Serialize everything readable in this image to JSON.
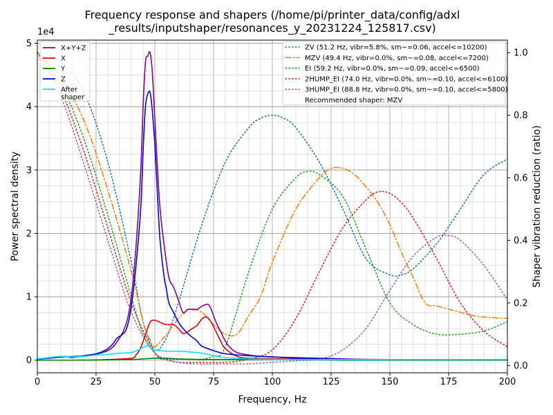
{
  "chart_data": {
    "type": "line",
    "title_lines": [
      "Frequency response and shapers (/home/pi/printer_data/config/adxl",
      "_results/inputshaper/resonances_y_20231224_125817.csv)"
    ],
    "xlabel": "Frequency, Hz",
    "ylabel": "Power spectral density",
    "y2label": "Shaper vibration reduction (ratio)",
    "y_offset_text": "1e4",
    "xlim": [
      0,
      200
    ],
    "ylim": [
      -0.2,
      5.05
    ],
    "y2lim": [
      -0.0235,
      1.04
    ],
    "x_ticks": [
      0,
      25,
      50,
      75,
      100,
      125,
      150,
      175,
      200
    ],
    "y_ticks": [
      0,
      1,
      2,
      3,
      4,
      5
    ],
    "y2_ticks": [
      0.0,
      0.2,
      0.4,
      0.6,
      0.8,
      1.0
    ],
    "x_tick_labels": [
      "0",
      "25",
      "50",
      "75",
      "100",
      "125",
      "150",
      "175",
      "200"
    ],
    "y_tick_labels": [
      "0",
      "1",
      "2",
      "3",
      "4",
      "5"
    ],
    "y2_tick_labels": [
      "0.0",
      "0.2",
      "0.4",
      "0.6",
      "0.8",
      "1.0"
    ],
    "grid": true,
    "legend_left_position": "upper-left",
    "legend_right_position": "upper-right",
    "psd_series": [
      {
        "name": "X+Y+Z",
        "color": "#800080",
        "x": [
          0,
          10,
          20,
          30,
          35,
          38,
          40,
          42,
          44,
          45,
          46,
          47,
          48,
          49,
          50,
          52,
          54,
          56,
          58,
          60,
          62,
          64,
          66,
          68,
          70,
          72,
          73,
          74,
          76,
          78,
          80,
          82,
          85,
          90,
          95,
          100,
          110,
          120,
          130,
          140,
          150,
          170,
          200
        ],
        "y": [
          0.02,
          0.05,
          0.07,
          0.15,
          0.35,
          0.6,
          1.0,
          1.8,
          3.0,
          4.0,
          4.7,
          4.8,
          4.85,
          4.5,
          3.8,
          2.5,
          1.8,
          1.3,
          1.15,
          0.95,
          0.75,
          0.8,
          0.8,
          0.8,
          0.85,
          0.88,
          0.87,
          0.8,
          0.6,
          0.45,
          0.3,
          0.2,
          0.12,
          0.08,
          0.06,
          0.05,
          0.04,
          0.03,
          0.02,
          0.01,
          0.01,
          0.01,
          0.01
        ]
      },
      {
        "name": "X",
        "color": "#e00000",
        "x": [
          0,
          20,
          30,
          40,
          42,
          44,
          46,
          48,
          50,
          52,
          54,
          56,
          58,
          60,
          62,
          64,
          66,
          68,
          70,
          72,
          74,
          76,
          78,
          80,
          85,
          90,
          100,
          120,
          150,
          200
        ],
        "y": [
          0,
          0,
          0.01,
          0.03,
          0.08,
          0.2,
          0.4,
          0.6,
          0.63,
          0.6,
          0.57,
          0.56,
          0.56,
          0.5,
          0.42,
          0.45,
          0.5,
          0.55,
          0.65,
          0.68,
          0.6,
          0.45,
          0.3,
          0.18,
          0.06,
          0.03,
          0.02,
          0.01,
          0.01,
          0
        ]
      },
      {
        "name": "Y",
        "color": "#008000",
        "x": [
          0,
          20,
          40,
          45,
          50,
          55,
          60,
          70,
          80,
          100,
          130,
          150,
          200
        ],
        "y": [
          0,
          0,
          0.01,
          0.02,
          0.03,
          0.03,
          0.02,
          0.01,
          0.01,
          0.01,
          0,
          0,
          0
        ]
      },
      {
        "name": "Z",
        "color": "#0000dd",
        "x": [
          0,
          5,
          10,
          12,
          15,
          20,
          25,
          28,
          30,
          32,
          34,
          36,
          38,
          40,
          42,
          44,
          45,
          46,
          47,
          48,
          49,
          50,
          51,
          52,
          53,
          54,
          55,
          56,
          58,
          60,
          62,
          64,
          66,
          68,
          70,
          75,
          80,
          90,
          100,
          110,
          120,
          150,
          200
        ],
        "y": [
          0.02,
          0.03,
          0.05,
          0.06,
          0.04,
          0.07,
          0.1,
          0.14,
          0.18,
          0.25,
          0.35,
          0.4,
          0.5,
          0.85,
          1.5,
          2.4,
          3.3,
          4.0,
          4.2,
          4.22,
          3.9,
          3.4,
          2.7,
          2.0,
          1.6,
          1.3,
          1.1,
          0.9,
          0.75,
          0.6,
          0.5,
          0.42,
          0.36,
          0.3,
          0.22,
          0.15,
          0.1,
          0.07,
          0.05,
          0.03,
          0.02,
          0.01,
          0.01
        ]
      },
      {
        "name": "After\nshaper",
        "color": "#00e5ff",
        "x": [
          0,
          5,
          10,
          15,
          20,
          25,
          30,
          35,
          40,
          43,
          45,
          47,
          48,
          50,
          52,
          55,
          60,
          65,
          70,
          75,
          80,
          90,
          100,
          120,
          150,
          200
        ],
        "y": [
          0.02,
          0.04,
          0.06,
          0.05,
          0.06,
          0.08,
          0.09,
          0.11,
          0.12,
          0.16,
          0.2,
          0.23,
          0.2,
          0.16,
          0.15,
          0.14,
          0.14,
          0.13,
          0.11,
          0.07,
          0.04,
          0.02,
          0.01,
          0.01,
          0.01,
          0.01
        ]
      }
    ],
    "shaper_series": [
      {
        "name": "ZV (51.2 Hz, vibr=5.8%, sm~=0.06, accel<=10200)",
        "color": "#1f77b4",
        "style": "dotted",
        "x": [
          0,
          10,
          20,
          30,
          40,
          45,
          50,
          55,
          60,
          70,
          80,
          90,
          95,
          100,
          105,
          110,
          120,
          130,
          140,
          150,
          155,
          160,
          170,
          180,
          190,
          200
        ],
        "y": [
          1.0,
          0.97,
          0.87,
          0.65,
          0.33,
          0.14,
          0.05,
          0.09,
          0.2,
          0.45,
          0.65,
          0.76,
          0.79,
          0.8,
          0.79,
          0.76,
          0.65,
          0.5,
          0.34,
          0.29,
          0.29,
          0.31,
          0.39,
          0.5,
          0.61,
          0.66
        ]
      },
      {
        "name": "MZV (49.4 Hz, vibr=0.0%, sm~=0.08, accel<=7200)",
        "color": "#ff7f0e",
        "style": "dashdot",
        "x": [
          0,
          10,
          20,
          30,
          40,
          45,
          48,
          50,
          55,
          60,
          65,
          70,
          75,
          80,
          85,
          90,
          95,
          100,
          110,
          120,
          125,
          130,
          135,
          140,
          145,
          150,
          155,
          160,
          165,
          170,
          175,
          180,
          185,
          190,
          200
        ],
        "y": [
          1.0,
          0.92,
          0.78,
          0.56,
          0.3,
          0.14,
          0.08,
          0.06,
          0.1,
          0.15,
          0.18,
          0.17,
          0.13,
          0.1,
          0.1,
          0.16,
          0.22,
          0.33,
          0.5,
          0.6,
          0.63,
          0.63,
          0.61,
          0.57,
          0.52,
          0.45,
          0.36,
          0.28,
          0.2,
          0.19,
          0.18,
          0.17,
          0.16,
          0.155,
          0.15
        ]
      },
      {
        "name": "EI (59.2 Hz, vibr=0.0%, sm~=0.09, accel<=6500)",
        "color": "#2ca02c",
        "style": "dotted",
        "x": [
          0,
          10,
          20,
          30,
          40,
          45,
          50,
          55,
          60,
          65,
          70,
          75,
          80,
          90,
          100,
          110,
          115,
          120,
          130,
          140,
          150,
          160,
          170,
          180,
          190,
          200
        ],
        "y": [
          1.0,
          0.9,
          0.72,
          0.48,
          0.22,
          0.1,
          0.04,
          0.02,
          0.02,
          0.02,
          0.02,
          0.03,
          0.06,
          0.3,
          0.5,
          0.6,
          0.62,
          0.61,
          0.54,
          0.37,
          0.2,
          0.13,
          0.1,
          0.1,
          0.11,
          0.14
        ]
      },
      {
        "name": "2HUMP_EI (74.0 Hz, vibr=0.0%, sm~=0.10, accel<=6100)",
        "color": "#d62728",
        "style": "dotted",
        "x": [
          0,
          10,
          20,
          30,
          40,
          50,
          55,
          60,
          70,
          80,
          90,
          100,
          110,
          120,
          130,
          140,
          145,
          150,
          155,
          160,
          170,
          180,
          190,
          200
        ],
        "y": [
          1.0,
          0.88,
          0.68,
          0.44,
          0.2,
          0.04,
          0.02,
          0.01,
          0.01,
          0.01,
          0.02,
          0.05,
          0.15,
          0.3,
          0.44,
          0.53,
          0.555,
          0.55,
          0.52,
          0.47,
          0.34,
          0.2,
          0.11,
          0.06
        ]
      },
      {
        "name": "3HUMP_EI (88.8 Hz, vibr=0.0%, sm~=0.10, accel<=5800)",
        "color": "#9467bd",
        "style": "dotted",
        "x": [
          0,
          10,
          20,
          30,
          40,
          50,
          60,
          70,
          80,
          90,
          100,
          110,
          120,
          130,
          140,
          150,
          160,
          170,
          175,
          180,
          190,
          200
        ],
        "y": [
          1.0,
          0.86,
          0.64,
          0.4,
          0.17,
          0.04,
          0.01,
          0.005,
          0.005,
          0.005,
          0.01,
          0.015,
          0.02,
          0.05,
          0.12,
          0.24,
          0.35,
          0.41,
          0.415,
          0.4,
          0.32,
          0.21
        ]
      }
    ],
    "recommended_text": "Recommended shaper: MZV"
  }
}
